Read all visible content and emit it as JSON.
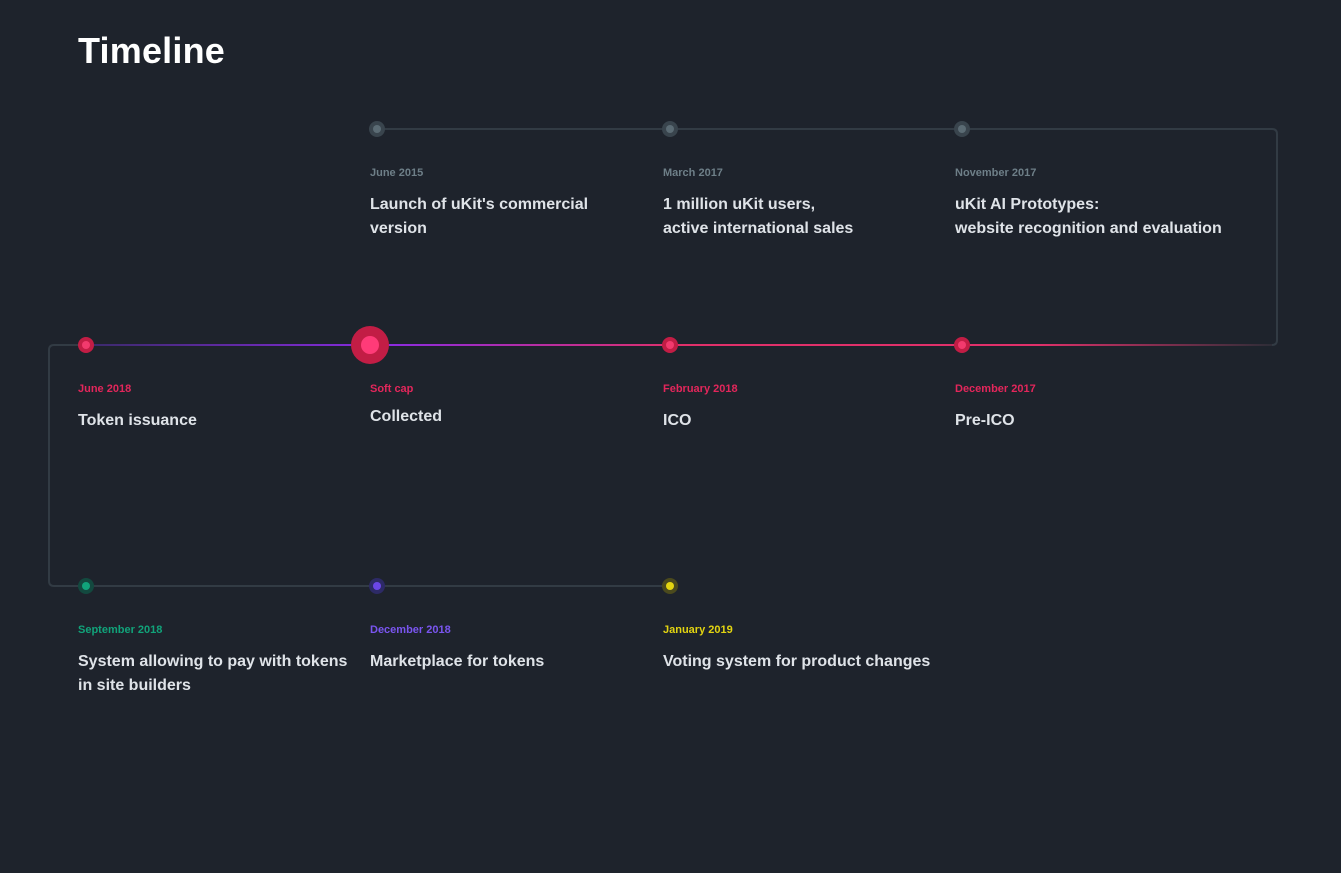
{
  "page": {
    "title": "Timeline"
  },
  "row1": [
    {
      "date": "June 2015",
      "text": "Launch of uKit's commercial\nversion"
    },
    {
      "date": "March 2017",
      "text": "1 million uKit users,\nactive international sales"
    },
    {
      "date": "November 2017",
      "text": "uKit AI Prototypes:\nwebsite recognition and evaluation"
    }
  ],
  "row2": [
    {
      "date": "June 2018",
      "text": "Token issuance"
    },
    {
      "date": "Soft cap",
      "text": "Collected"
    },
    {
      "date": "February 2018",
      "text": "ICO"
    },
    {
      "date": "December 2017",
      "text": "Pre-ICO"
    }
  ],
  "row3": [
    {
      "date": "September 2018",
      "text": "System allowing to pay with tokens\nin site builders"
    },
    {
      "date": "December 2018",
      "text": "Marketplace for tokens"
    },
    {
      "date": "January 2019",
      "text": "Voting system for product changes"
    }
  ],
  "colors": {
    "background": "#1e232c",
    "past": "#6e7f88",
    "current": "#e3265b",
    "september_2018": "#11a37a",
    "december_2018": "#7a55f0",
    "january_2019": "#e3d411"
  }
}
